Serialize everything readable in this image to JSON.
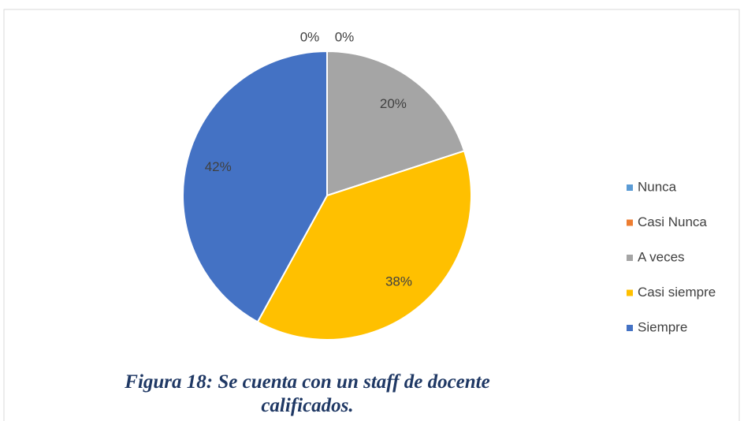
{
  "chart_data": {
    "type": "pie",
    "categories": [
      "Nunca",
      "Casi Nunca",
      "A veces",
      "Casi siempre",
      "Siempre"
    ],
    "values": [
      0,
      0,
      20,
      38,
      42
    ],
    "value_labels": [
      "0%",
      "0%",
      "20%",
      "38%",
      "42%"
    ],
    "colors": [
      "#5b9bd5",
      "#ed7d31",
      "#a5a5a5",
      "#ffc000",
      "#4472c4"
    ],
    "legend": "right",
    "caption": "Figura 18: Se cuenta con un staff de docente calificados."
  }
}
